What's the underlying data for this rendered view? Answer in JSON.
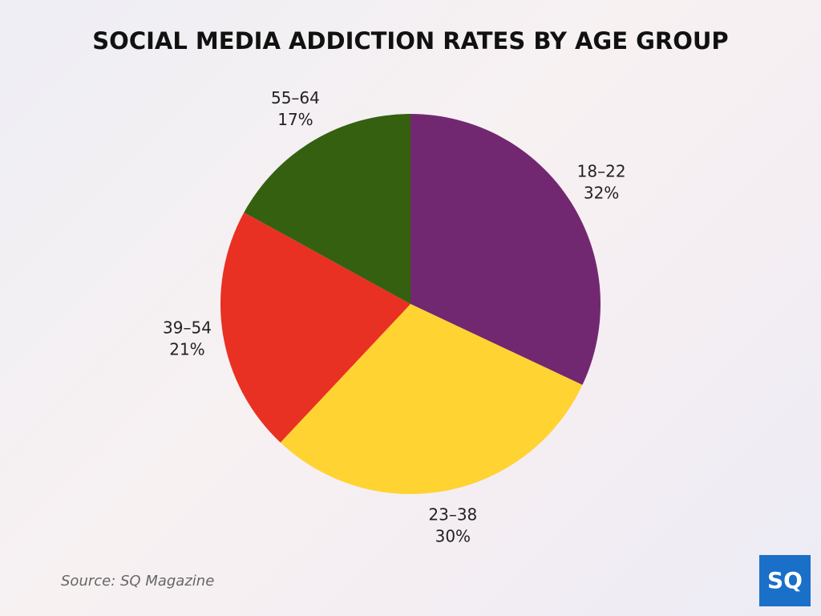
{
  "chart_data": {
    "type": "pie",
    "title": "SOCIAL MEDIA ADDICTION RATES BY AGE GROUP",
    "categories": [
      "18–22",
      "23–38",
      "39–54",
      "55–64"
    ],
    "values": [
      32,
      30,
      21,
      17
    ],
    "value_labels": [
      "32%",
      "30%",
      "21%",
      "17%"
    ],
    "colors": [
      "#722870",
      "#ffd332",
      "#e83122",
      "#346010"
    ],
    "source": "Source: SQ Magazine",
    "logo": "SQ"
  }
}
